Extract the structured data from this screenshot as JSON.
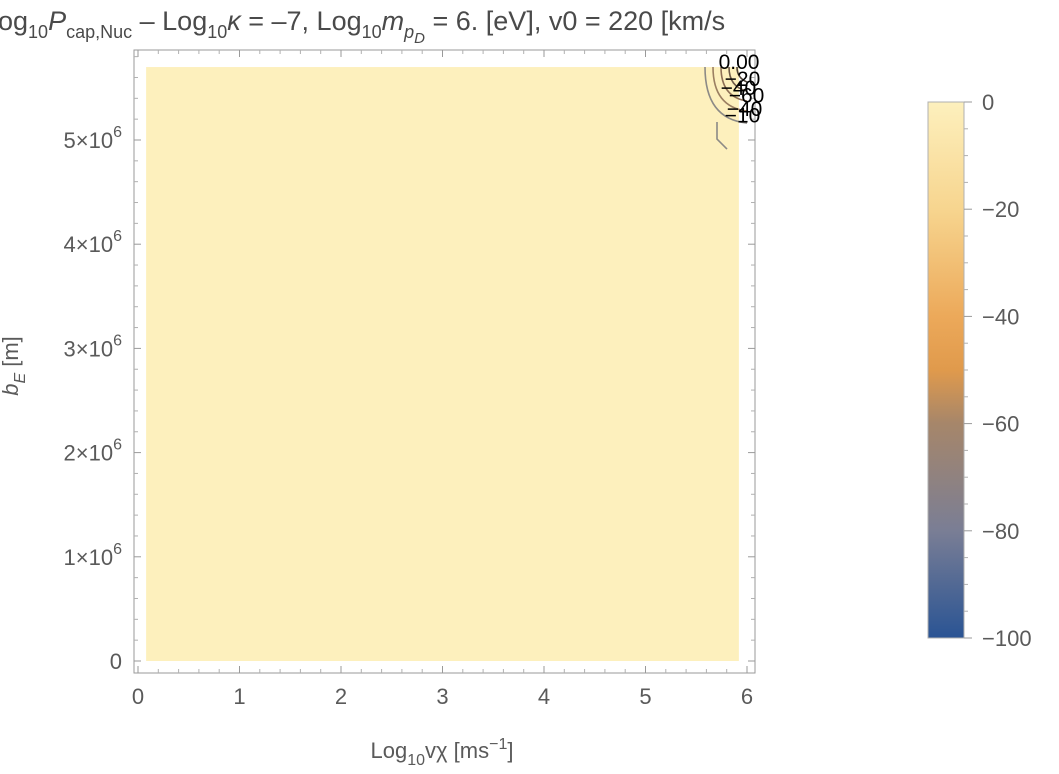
{
  "chart_data": {
    "type": "contour",
    "title": {
      "t1": "og",
      "t1_sub": "10",
      "t2": "P",
      "t2_sub": "cap,Nuc",
      "t3": " – Log",
      "t3_sub": "10",
      "t4": "κ",
      "t5": " = –7, Log",
      "t5_sub": "10",
      "t6": "m",
      "t6_sub": "p",
      "t6_subsub": "D",
      "t7": " = 6. [eV], v0 = 220 [km/s"
    },
    "xlabel": {
      "main": "Log",
      "sub": "10",
      "var": "vχ",
      "unit": " [ms",
      "sup": "−1",
      "close": "]"
    },
    "ylabel": {
      "main": "b",
      "sub": "E",
      "unit": " [m]"
    },
    "xlim": [
      0,
      6
    ],
    "ylim": [
      0,
      5800000
    ],
    "x_ticks": [
      {
        "value": 0,
        "label": "0"
      },
      {
        "value": 1,
        "label": "1"
      },
      {
        "value": 2,
        "label": "2"
      },
      {
        "value": 3,
        "label": "3"
      },
      {
        "value": 4,
        "label": "4"
      },
      {
        "value": 5,
        "label": "5"
      },
      {
        "value": 6,
        "label": "6"
      }
    ],
    "y_ticks": [
      {
        "value": 0,
        "label": "0",
        "mult": "",
        "base": "",
        "exp": ""
      },
      {
        "value": 1000000,
        "label": "",
        "mult": "1×",
        "base": "10",
        "exp": "6"
      },
      {
        "value": 2000000,
        "label": "",
        "mult": "2×",
        "base": "10",
        "exp": "6"
      },
      {
        "value": 3000000,
        "label": "",
        "mult": "3×",
        "base": "10",
        "exp": "6"
      },
      {
        "value": 4000000,
        "label": "",
        "mult": "4×",
        "base": "10",
        "exp": "6"
      },
      {
        "value": 5000000,
        "label": "",
        "mult": "5×",
        "base": "10",
        "exp": "6"
      }
    ],
    "field": {
      "fill_color": "#fdf0bd",
      "value": 0,
      "x_range": [
        0.08,
        5.92
      ],
      "y_range": [
        0,
        5700000
      ]
    },
    "contour_labels": [
      {
        "text": "0.00",
        "x": 5.72,
        "y": 5680000
      },
      {
        "text": "−20",
        "x": 5.78,
        "y": 5520000
      },
      {
        "text": "−40",
        "x": 5.74,
        "y": 5430000
      },
      {
        "text": "−60",
        "x": 5.82,
        "y": 5360000
      },
      {
        "text": "−40",
        "x": 5.8,
        "y": 5230000
      },
      {
        "text": "−10",
        "x": 5.78,
        "y": 5170000
      }
    ],
    "colorbar": {
      "range": [
        -100,
        0
      ],
      "ticks": [
        {
          "value": 0,
          "label": "0"
        },
        {
          "value": -20,
          "label": "−20"
        },
        {
          "value": -40,
          "label": "−40"
        },
        {
          "value": -60,
          "label": "−60"
        },
        {
          "value": -80,
          "label": "−80"
        },
        {
          "value": -100,
          "label": "−100"
        }
      ],
      "stops": [
        {
          "value": 0,
          "color": "#fdf0bd"
        },
        {
          "value": -20,
          "color": "#f7d58f"
        },
        {
          "value": -40,
          "color": "#eca95a"
        },
        {
          "value": -50,
          "color": "#e09a4c"
        },
        {
          "value": -60,
          "color": "#a6866a"
        },
        {
          "value": -80,
          "color": "#7a7e95"
        },
        {
          "value": -100,
          "color": "#2a5494"
        }
      ]
    }
  }
}
